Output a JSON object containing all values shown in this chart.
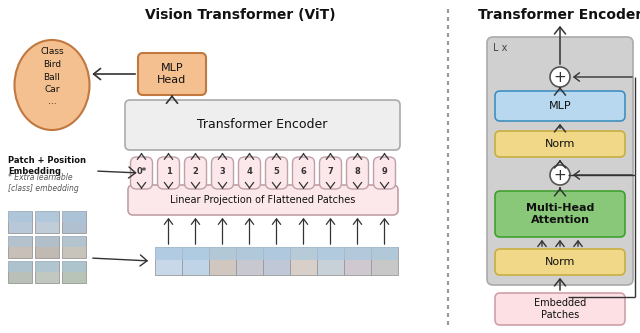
{
  "title_left": "Vision Transformer (ViT)",
  "title_right": "Transformer Encoder",
  "bg_color": "#ffffff",
  "patch_tokens": [
    "0*",
    "1",
    "2",
    "3",
    "4",
    "5",
    "6",
    "7",
    "8",
    "9"
  ],
  "token_color": "#fce8eb",
  "token_border": "#c0a0a8",
  "linear_proj_color": "#fce8eb",
  "linear_proj_border": "#c0a0a8",
  "transformer_enc_color": "#eeeeee",
  "transformer_enc_border": "#aaaaaa",
  "mlp_head_color": "#f5c090",
  "mlp_head_border": "#c07840",
  "class_oval_color": "#f5c090",
  "class_oval_border": "#c07840",
  "right_bg_color": "#cccccc",
  "right_mlp_color": "#b8d8f0",
  "right_norm_color": "#f0d888",
  "right_mha_color": "#88c878",
  "right_embedded_color": "#fce0e4",
  "arrow_color": "#333333",
  "dashed_line_color": "#999999",
  "img_patch_colors": [
    [
      "#d0dce8",
      "#b8cce0"
    ],
    [
      "#c8c0b8",
      "#d0c8c0"
    ],
    [
      "#b8c8d8",
      "#a8b8c8"
    ],
    [
      "#c0c8c0",
      "#b0c0b0"
    ]
  ]
}
